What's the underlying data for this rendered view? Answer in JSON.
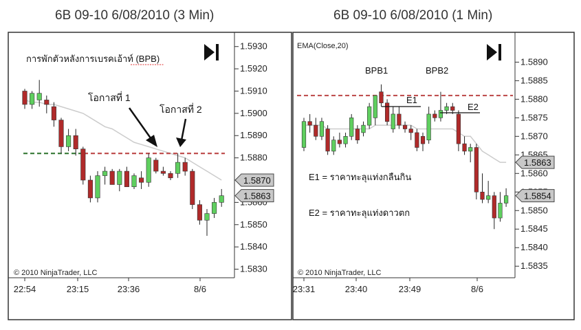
{
  "chart_data": [
    {
      "type": "candlestick",
      "title": "6B 09-10  6/08/2010 (3 Min)",
      "annotation_title": "การพักตัวหลังการเบรคเอ้าท์ (BPB)",
      "copyright": "© 2010 NinjaTrader, LLC",
      "x_ticks": [
        "22:54",
        "23:15",
        "23:36",
        "8/6"
      ],
      "y_ticks": [
        "1.5930",
        "1.5920",
        "1.5910",
        "1.5900",
        "1.5890",
        "1.5880",
        "1.5870",
        "1.5860",
        "1.5850",
        "1.5840",
        "1.5830"
      ],
      "ylim": [
        1.5828,
        1.5933
      ],
      "price_markers": [
        {
          "label": "1.5870",
          "value": 1.587
        },
        {
          "label": "1.5863",
          "value": 1.5863
        }
      ],
      "resistance_level": 1.5882,
      "labels": {
        "chance1": "โอกาสที่ 1",
        "chance2": "โอกาสที่ 2"
      },
      "candles": [
        {
          "o": 1.591,
          "h": 1.5911,
          "l": 1.5902,
          "c": 1.5904
        },
        {
          "o": 1.5904,
          "h": 1.591,
          "l": 1.5902,
          "c": 1.5909
        },
        {
          "o": 1.5906,
          "h": 1.5915,
          "l": 1.5903,
          "c": 1.5909
        },
        {
          "o": 1.5906,
          "h": 1.5908,
          "l": 1.59,
          "c": 1.5904
        },
        {
          "o": 1.5903,
          "h": 1.5905,
          "l": 1.5894,
          "c": 1.5897
        },
        {
          "o": 1.5897,
          "h": 1.5898,
          "l": 1.5882,
          "c": 1.5885
        },
        {
          "o": 1.5885,
          "h": 1.5893,
          "l": 1.5883,
          "c": 1.589
        },
        {
          "o": 1.589,
          "h": 1.5893,
          "l": 1.5881,
          "c": 1.5884
        },
        {
          "o": 1.5884,
          "h": 1.5885,
          "l": 1.5868,
          "c": 1.587
        },
        {
          "o": 1.587,
          "h": 1.5872,
          "l": 1.586,
          "c": 1.5862
        },
        {
          "o": 1.5862,
          "h": 1.5874,
          "l": 1.586,
          "c": 1.5872
        },
        {
          "o": 1.5872,
          "h": 1.5876,
          "l": 1.5868,
          "c": 1.5874
        },
        {
          "o": 1.5874,
          "h": 1.5875,
          "l": 1.5868,
          "c": 1.5868
        },
        {
          "o": 1.5868,
          "h": 1.5875,
          "l": 1.5865,
          "c": 1.5874
        },
        {
          "o": 1.5874,
          "h": 1.5876,
          "l": 1.5867,
          "c": 1.5867
        },
        {
          "o": 1.5867,
          "h": 1.5873,
          "l": 1.5866,
          "c": 1.5872
        },
        {
          "o": 1.5871,
          "h": 1.5874,
          "l": 1.5866,
          "c": 1.5869
        },
        {
          "o": 1.5869,
          "h": 1.5882,
          "l": 1.5867,
          "c": 1.588
        },
        {
          "o": 1.5879,
          "h": 1.588,
          "l": 1.5873,
          "c": 1.5874
        },
        {
          "o": 1.5874,
          "h": 1.5876,
          "l": 1.5872,
          "c": 1.5873
        },
        {
          "o": 1.5873,
          "h": 1.5874,
          "l": 1.587,
          "c": 1.5871
        },
        {
          "o": 1.5873,
          "h": 1.5882,
          "l": 1.5871,
          "c": 1.5878
        },
        {
          "o": 1.5878,
          "h": 1.588,
          "l": 1.5872,
          "c": 1.5874
        },
        {
          "o": 1.5874,
          "h": 1.5875,
          "l": 1.5857,
          "c": 1.5859
        },
        {
          "o": 1.5859,
          "h": 1.5861,
          "l": 1.585,
          "c": 1.5852
        },
        {
          "o": 1.5852,
          "h": 1.5857,
          "l": 1.5845,
          "c": 1.5855
        },
        {
          "o": 1.5855,
          "h": 1.5862,
          "l": 1.5853,
          "c": 1.586
        },
        {
          "o": 1.586,
          "h": 1.5866,
          "l": 1.5858,
          "c": 1.5863
        }
      ],
      "ema": [
        1.5906,
        1.5905,
        1.5905,
        1.5904,
        1.5904,
        1.5903,
        1.5902,
        1.5901,
        1.59,
        1.5898,
        1.5896,
        1.5894,
        1.5893,
        1.5891,
        1.5889,
        1.5887,
        1.5886,
        1.5885,
        1.5884,
        1.5883,
        1.5882,
        1.5881,
        1.588,
        1.5878,
        1.5876,
        1.5874,
        1.5872,
        1.587
      ]
    },
    {
      "type": "candlestick",
      "title": "6B 09-10  6/08/2010 (1 Min)",
      "indicator_label": "EMA(Close,20)",
      "copyright": "© 2010 NinjaTrader, LLC",
      "x_ticks": [
        "23:31",
        "23:40",
        "23:49",
        "8/6"
      ],
      "y_ticks": [
        "1.5890",
        "1.5885",
        "1.5880",
        "1.5875",
        "1.5870",
        "1.5865",
        "1.5860",
        "1.5855",
        "1.5850",
        "1.5845",
        "1.5840",
        "1.5835"
      ],
      "ylim": [
        1.5833,
        1.5896
      ],
      "price_markers": [
        {
          "label": "1.5863",
          "value": 1.5863
        },
        {
          "label": "1.5854",
          "value": 1.5854
        }
      ],
      "resistance_level": 1.5881,
      "labels": {
        "bpb1": "BPB1",
        "bpb2": "BPB2",
        "e1": "E1",
        "e2": "E2",
        "legend_e1": "E1 = ราคาทะลุแท่งกลืนกิน",
        "legend_e2": "E2 = ราคาทะลุแท่งดาวตก"
      },
      "candles": [
        {
          "o": 1.5867,
          "h": 1.5875,
          "l": 1.5866,
          "c": 1.5874
        },
        {
          "o": 1.5874,
          "h": 1.5876,
          "l": 1.5871,
          "c": 1.5873
        },
        {
          "o": 1.5873,
          "h": 1.5875,
          "l": 1.5869,
          "c": 1.587
        },
        {
          "o": 1.587,
          "h": 1.5875,
          "l": 1.5869,
          "c": 1.5874
        },
        {
          "o": 1.5872,
          "h": 1.5873,
          "l": 1.5865,
          "c": 1.5866
        },
        {
          "o": 1.5866,
          "h": 1.587,
          "l": 1.5865,
          "c": 1.5869
        },
        {
          "o": 1.5869,
          "h": 1.5871,
          "l": 1.5867,
          "c": 1.5868
        },
        {
          "o": 1.5868,
          "h": 1.5871,
          "l": 1.5867,
          "c": 1.587
        },
        {
          "o": 1.587,
          "h": 1.5876,
          "l": 1.5869,
          "c": 1.5875
        },
        {
          "o": 1.5872,
          "h": 1.5873,
          "l": 1.5868,
          "c": 1.5869
        },
        {
          "o": 1.5871,
          "h": 1.5874,
          "l": 1.587,
          "c": 1.5873
        },
        {
          "o": 1.5873,
          "h": 1.5879,
          "l": 1.5872,
          "c": 1.5878
        },
        {
          "o": 1.5875,
          "h": 1.5881,
          "l": 1.5873,
          "c": 1.5881
        },
        {
          "o": 1.5882,
          "h": 1.5884,
          "l": 1.5878,
          "c": 1.5879
        },
        {
          "o": 1.5879,
          "h": 1.588,
          "l": 1.5873,
          "c": 1.5874
        },
        {
          "o": 1.5872,
          "h": 1.5878,
          "l": 1.5871,
          "c": 1.5876
        },
        {
          "o": 1.5876,
          "h": 1.5878,
          "l": 1.5872,
          "c": 1.5873
        },
        {
          "o": 1.5873,
          "h": 1.5874,
          "l": 1.5871,
          "c": 1.5872
        },
        {
          "o": 1.5872,
          "h": 1.5873,
          "l": 1.5869,
          "c": 1.5871
        },
        {
          "o": 1.5871,
          "h": 1.5872,
          "l": 1.5866,
          "c": 1.5867
        },
        {
          "o": 1.587,
          "h": 1.5871,
          "l": 1.5866,
          "c": 1.5868
        },
        {
          "o": 1.5869,
          "h": 1.5878,
          "l": 1.5868,
          "c": 1.5876
        },
        {
          "o": 1.5876,
          "h": 1.5877,
          "l": 1.5874,
          "c": 1.5875
        },
        {
          "o": 1.5875,
          "h": 1.5882,
          "l": 1.5874,
          "c": 1.5877
        },
        {
          "o": 1.5877,
          "h": 1.5879,
          "l": 1.5876,
          "c": 1.5878
        },
        {
          "o": 1.5878,
          "h": 1.5879,
          "l": 1.5876,
          "c": 1.5877
        },
        {
          "o": 1.5876,
          "h": 1.5877,
          "l": 1.5866,
          "c": 1.5868
        },
        {
          "o": 1.5868,
          "h": 1.587,
          "l": 1.5865,
          "c": 1.5866
        },
        {
          "o": 1.5866,
          "h": 1.5868,
          "l": 1.5863,
          "c": 1.5867
        },
        {
          "o": 1.5867,
          "h": 1.5868,
          "l": 1.5853,
          "c": 1.5855
        },
        {
          "o": 1.5855,
          "h": 1.586,
          "l": 1.5852,
          "c": 1.5853
        },
        {
          "o": 1.5853,
          "h": 1.5858,
          "l": 1.5852,
          "c": 1.5854
        },
        {
          "o": 1.5854,
          "h": 1.5855,
          "l": 1.5845,
          "c": 1.5848
        },
        {
          "o": 1.5848,
          "h": 1.5855,
          "l": 1.5847,
          "c": 1.5852
        },
        {
          "o": 1.5852,
          "h": 1.5856,
          "l": 1.5851,
          "c": 1.5854
        }
      ],
      "ema": [
        1.5873,
        1.5873,
        1.5873,
        1.5873,
        1.5872,
        1.5872,
        1.5872,
        1.5872,
        1.5872,
        1.5872,
        1.5872,
        1.5872,
        1.5873,
        1.5873,
        1.5873,
        1.5873,
        1.5873,
        1.5873,
        1.5873,
        1.5872,
        1.5872,
        1.5872,
        1.5872,
        1.5872,
        1.5872,
        1.5872,
        1.5871,
        1.587,
        1.587,
        1.5868,
        1.5866,
        1.5865,
        1.5864,
        1.5863,
        1.5863
      ]
    }
  ],
  "colors": {
    "bull": "#5fcf5f",
    "bear": "#b02a2a",
    "ema": "#cccccc",
    "resistance": "#c05050",
    "support": "#3f7f3f",
    "marker_fill": "#c8c8c8",
    "annotation_underline": "#e03030"
  }
}
